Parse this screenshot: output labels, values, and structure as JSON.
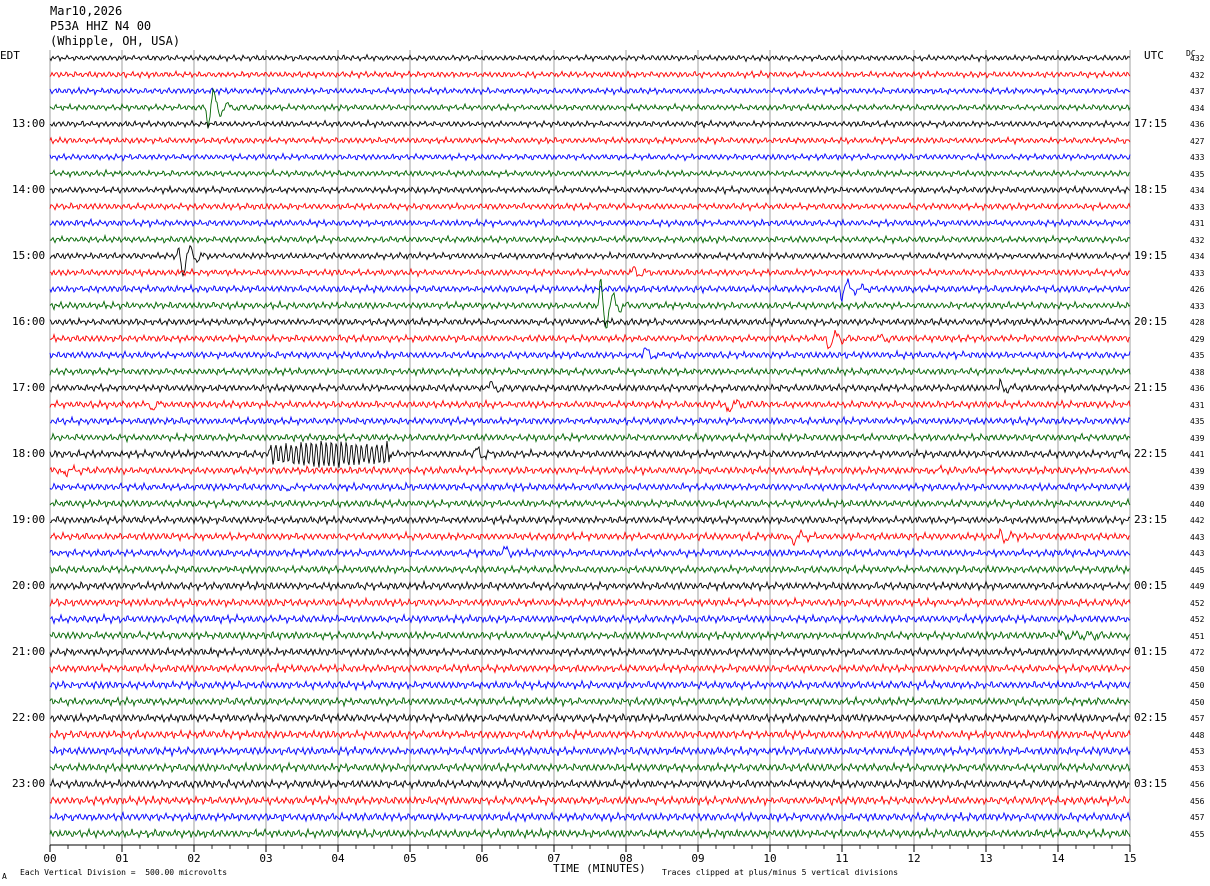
{
  "header": {
    "date": "Mar10,2026",
    "station": "P53A HHZ N4 00",
    "location": "(Whipple, OH, USA)"
  },
  "left_timezone": "EDT",
  "right_timezone": "UTC",
  "dc_label": "DC",
  "footer": {
    "scale_note": "Each Vertical Division =  500.00 microvolts",
    "clip_note": "Traces clipped at plus/minus 5 vertical divisions",
    "corner_mark": "A"
  },
  "colors": {
    "trace_cycle": [
      "#000000",
      "#ff0000",
      "#0000ff",
      "#006400"
    ],
    "grid": "#888888"
  },
  "chart_data": {
    "type": "line",
    "xlabel": "TIME (MINUTES)",
    "xlim": [
      0,
      15
    ],
    "x_ticks": [
      "00",
      "01",
      "02",
      "03",
      "04",
      "05",
      "06",
      "07",
      "08",
      "09",
      "10",
      "11",
      "12",
      "13",
      "14",
      "15"
    ],
    "rows_per_hour": 4,
    "row_count": 48,
    "left_hour_labels": [
      "13:00",
      "14:00",
      "15:00",
      "16:00",
      "17:00",
      "18:00",
      "19:00",
      "20:00",
      "21:00",
      "22:00",
      "23:00"
    ],
    "right_hour_labels": [
      "17:15",
      "18:15",
      "19:15",
      "20:15",
      "21:15",
      "22:15",
      "23:15",
      "00:15",
      "01:15",
      "02:15",
      "03:15"
    ],
    "first_labeled_row": 4,
    "dc_values": [
      "432",
      "432",
      "437",
      "434",
      "436",
      "427",
      "433",
      "435",
      "434",
      "433",
      "431",
      "432",
      "434",
      "433",
      "426",
      "433",
      "428",
      "429",
      "435",
      "438",
      "436",
      "431",
      "435",
      "439",
      "441",
      "439",
      "439",
      "440",
      "442",
      "443",
      "443",
      "445",
      "449",
      "452",
      "452",
      "451",
      "472",
      "450",
      "450",
      "450",
      "457",
      "448",
      "453",
      "453",
      "456",
      "456",
      "457",
      "455"
    ],
    "amplitude_base": [
      2.8,
      3.0,
      3.0,
      3.0,
      3.0,
      3.0,
      3.0,
      3.0,
      3.2,
      3.2,
      3.2,
      3.2,
      3.2,
      3.2,
      3.4,
      3.4,
      3.4,
      3.4,
      3.4,
      3.4,
      3.5,
      3.5,
      3.5,
      3.5,
      3.6,
      3.6,
      3.6,
      3.6,
      3.6,
      3.6,
      3.6,
      3.6,
      3.8,
      3.8,
      3.8,
      3.8,
      3.8,
      3.8,
      3.8,
      3.8,
      4.0,
      4.0,
      4.0,
      4.0,
      4.0,
      4.0,
      4.0,
      4.0
    ],
    "events": [
      {
        "row": 3,
        "minute": 2.2,
        "amp": 30,
        "dur": 0.3
      },
      {
        "row": 12,
        "minute": 1.8,
        "amp": 28,
        "dur": 0.3
      },
      {
        "row": 13,
        "minute": 8.1,
        "amp": 6,
        "dur": 0.4
      },
      {
        "row": 14,
        "minute": 11.0,
        "amp": 16,
        "dur": 0.3
      },
      {
        "row": 15,
        "minute": 7.65,
        "amp": 40,
        "dur": 0.3
      },
      {
        "row": 17,
        "minute": 10.8,
        "amp": 14,
        "dur": 0.3
      },
      {
        "row": 17,
        "minute": 11.5,
        "amp": 4,
        "dur": 0.5
      },
      {
        "row": 18,
        "minute": 8.25,
        "amp": 12,
        "dur": 0.25
      },
      {
        "row": 20,
        "minute": 6.1,
        "amp": 9,
        "dur": 0.25
      },
      {
        "row": 20,
        "minute": 13.2,
        "amp": 10,
        "dur": 0.2
      },
      {
        "row": 21,
        "minute": 1.4,
        "amp": 9,
        "dur": 0.25
      },
      {
        "row": 21,
        "minute": 9.4,
        "amp": 12,
        "dur": 0.3
      },
      {
        "row": 24,
        "minute": 5.9,
        "amp": 8,
        "dur": 0.4
      },
      {
        "row": 24,
        "minute": 14.8,
        "amp": 5,
        "dur": 0.4
      },
      {
        "row": 25,
        "minute": 0.2,
        "amp": 6,
        "dur": 0.3
      },
      {
        "row": 25,
        "minute": 12.3,
        "amp": 5,
        "dur": 0.4
      },
      {
        "row": 26,
        "minute": 3.3,
        "amp": 8,
        "dur": 0.05
      },
      {
        "row": 26,
        "minute": 4.9,
        "amp": 6,
        "dur": 0.05
      },
      {
        "row": 29,
        "minute": 10.3,
        "amp": 11,
        "dur": 0.25
      },
      {
        "row": 29,
        "minute": 13.2,
        "amp": 11,
        "dur": 0.2
      },
      {
        "row": 30,
        "minute": 6.3,
        "amp": 9,
        "dur": 0.2
      },
      {
        "row": 35,
        "minute": 14.0,
        "amp": 5,
        "dur": 1.2
      }
    ],
    "long_period_signal": {
      "row": 24,
      "start_minute": 3.05,
      "end_minute": 4.72,
      "amp": 11,
      "period_minutes": 0.07
    }
  }
}
